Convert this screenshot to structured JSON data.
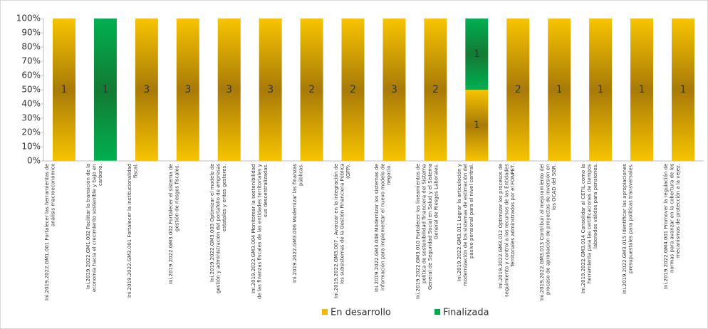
{
  "chart_data": {
    "type": "stacked_bar_100",
    "categories": [
      "Ini.2019.2022.GM1.001 Fortalecer las herramientas de análisis macroeconómico",
      "Ini.2019.2022.GM1.002 Facilitar la transición de la economía hacia el crecimiento sostenible y bajo en carbono.",
      "Ini.2019.2022.GM3.001 Fortalecer la institucionalidad fiscal.",
      "Ini.2019.2022.GM3.002 Fortalecer el sistema de gestión de riesgos fiscales.",
      "Ini.2019.2022.GM3.003 Optimizar el modelo de gestión y administración del portafolio de empresas estatales y entes gestores.",
      "Ini.2019.2022.GM3.004 Monitorear la sostenibilidad de las finanzas fiscales de las entidades territoriales y sus descentralizadas.",
      "Ini.2019.2022.GM3.006 Modernizar las finanzas públicas.",
      "Ini.2019.2022.GM3.007 . Avanzar en la integración de los subsistemas de la Gestión Financiera Pública (GFP).",
      "Ini.2019.2022.GM3.008 Modernizar los sistemas de información para implementar el nuevo modelo de negocio.",
      "Ini.2019.2022.GM3.010 Fortalecer los lineamientos de política de sostenibilidad financiera del Sistema General de Seguridad Social en Salud y el Sistema General de Riesgos Laborales.",
      "Ini.2019.2022.GM3.011 Lograr la articulación y modernización de los sistemas de estimación del pasivo pensional para el nivel central.",
      "Ini.2019.2022.GM3.012 Optimizar los procesos de seguimiento y control a los recursos de las Entidades Territoriales adminstrados por el FONPET.",
      "Ini.2019.2022.GM3.013 Contribuir al mejoramiento del proceso de aprobación de proyectos de inversión en los OCAD del SGR.",
      "Ini.2019.2022.GM3.014 Consolidar al CETIL como la herramienta para las certificaciones de tiempos laborados válidos para pensiones.",
      "Ini.2019.2022.GM3.015 Identificar las apropiaciones presupuestales para políticas transversales.",
      "Ini.2019.2022.GM4.001 Promover la regulación de normas para avanzar en la cobertura de los mecanismos de protección a la vejez."
    ],
    "series": [
      {
        "name": "En desarrollo",
        "color": "#f2b800",
        "values": [
          100,
          0,
          100,
          100,
          100,
          100,
          100,
          100,
          100,
          100,
          50,
          100,
          100,
          100,
          100,
          100
        ],
        "counts": [
          1,
          null,
          3,
          3,
          3,
          3,
          2,
          2,
          3,
          2,
          1,
          2,
          1,
          1,
          1,
          1
        ]
      },
      {
        "name": "Finalizada",
        "color": "#00a550",
        "values": [
          0,
          100,
          0,
          0,
          0,
          0,
          0,
          0,
          0,
          0,
          50,
          0,
          0,
          0,
          0,
          0
        ],
        "counts": [
          null,
          1,
          null,
          null,
          null,
          null,
          null,
          null,
          null,
          null,
          1,
          null,
          null,
          null,
          null,
          null
        ]
      }
    ],
    "ylim": [
      0,
      100
    ],
    "yticks": [
      {
        "value": 0,
        "label": "0%"
      },
      {
        "value": 10,
        "label": "10%"
      },
      {
        "value": 20,
        "label": "20%"
      },
      {
        "value": 30,
        "label": "30%"
      },
      {
        "value": 40,
        "label": "40%"
      },
      {
        "value": 50,
        "label": "50%"
      },
      {
        "value": 60,
        "label": "60%"
      },
      {
        "value": 70,
        "label": "70%"
      },
      {
        "value": 80,
        "label": "80%"
      },
      {
        "value": 90,
        "label": "90%"
      },
      {
        "value": 100,
        "label": "100%"
      }
    ],
    "grid": false,
    "legend": "bottom"
  }
}
